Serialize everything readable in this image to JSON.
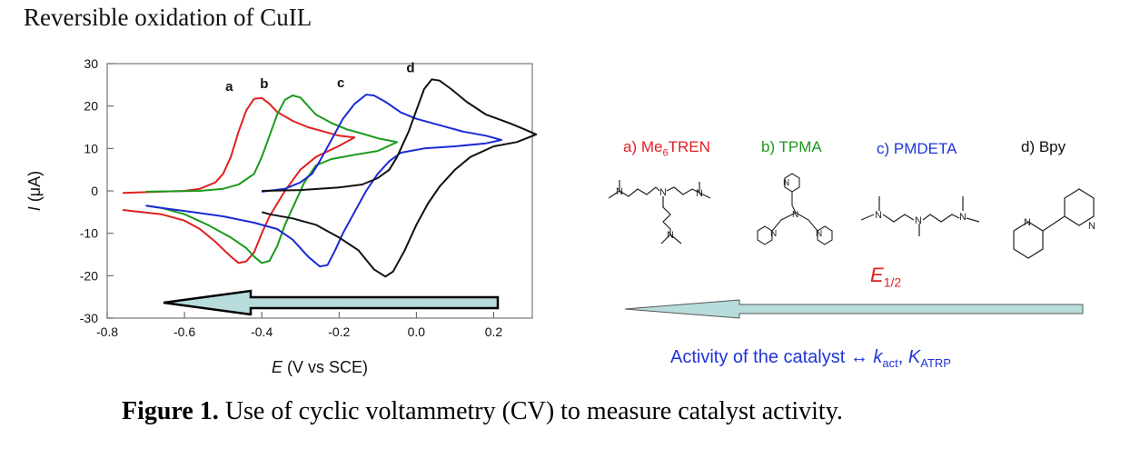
{
  "page_heading": "Reversible oxidation of CuIL",
  "caption": {
    "label": "Figure 1.",
    "text": " Use of cyclic voltammetry (CV) to measure catalyst activity."
  },
  "chart_data": {
    "type": "line",
    "xlabel_symbol": "E",
    "xlabel_rest": " (V vs SCE)",
    "ylabel_symbol": "I",
    "ylabel_rest": " (μA)",
    "xlim": [
      -0.8,
      0.3
    ],
    "ylim": [
      -30,
      30
    ],
    "xticks": [
      -0.8,
      -0.6,
      -0.4,
      -0.2,
      0.0,
      0.2
    ],
    "xtick_labels": [
      "-0.8",
      "-0.6",
      "-0.4",
      "-0.2",
      "0.0",
      "0.2"
    ],
    "yticks": [
      30,
      20,
      10,
      0,
      -10,
      -20,
      -30
    ],
    "ytick_labels": [
      "30",
      "20",
      "10",
      "0",
      "-10",
      "-20",
      "-30"
    ],
    "series": [
      {
        "name": "a",
        "color": "#e02020",
        "points": [
          [
            -0.76,
            -0.5
          ],
          [
            -0.6,
            0
          ],
          [
            -0.56,
            0.5
          ],
          [
            -0.52,
            2
          ],
          [
            -0.5,
            4
          ],
          [
            -0.48,
            8
          ],
          [
            -0.46,
            14
          ],
          [
            -0.44,
            19
          ],
          [
            -0.42,
            21.7
          ],
          [
            -0.4,
            21.9
          ],
          [
            -0.38,
            20.5
          ],
          [
            -0.36,
            18.6
          ],
          [
            -0.32,
            16.5
          ],
          [
            -0.28,
            15
          ],
          [
            -0.24,
            14
          ],
          [
            -0.2,
            13
          ],
          [
            -0.16,
            12.6
          ],
          [
            -0.2,
            10.6
          ],
          [
            -0.26,
            8
          ],
          [
            -0.3,
            5
          ],
          [
            -0.34,
            0
          ],
          [
            -0.36,
            -3
          ],
          [
            -0.38,
            -6
          ],
          [
            -0.4,
            -10
          ],
          [
            -0.42,
            -14.5
          ],
          [
            -0.44,
            -16.6
          ],
          [
            -0.46,
            -17
          ],
          [
            -0.48,
            -15.5
          ],
          [
            -0.52,
            -12
          ],
          [
            -0.56,
            -9
          ],
          [
            -0.6,
            -7
          ],
          [
            -0.66,
            -5.5
          ],
          [
            -0.76,
            -4.5
          ]
        ]
      },
      {
        "name": "b",
        "color": "#1a9a1a",
        "points": [
          [
            -0.7,
            -0.2
          ],
          [
            -0.56,
            0
          ],
          [
            -0.5,
            0.5
          ],
          [
            -0.46,
            1.5
          ],
          [
            -0.42,
            4
          ],
          [
            -0.4,
            8
          ],
          [
            -0.38,
            13
          ],
          [
            -0.36,
            18
          ],
          [
            -0.34,
            21.5
          ],
          [
            -0.32,
            22.5
          ],
          [
            -0.3,
            22
          ],
          [
            -0.28,
            20
          ],
          [
            -0.26,
            18
          ],
          [
            -0.22,
            16
          ],
          [
            -0.18,
            14.5
          ],
          [
            -0.14,
            13.5
          ],
          [
            -0.1,
            12.4
          ],
          [
            -0.05,
            11.5
          ],
          [
            -0.1,
            9.4
          ],
          [
            -0.16,
            8.5
          ],
          [
            -0.22,
            7.5
          ],
          [
            -0.26,
            6
          ],
          [
            -0.29,
            2
          ],
          [
            -0.31,
            -2
          ],
          [
            -0.34,
            -8
          ],
          [
            -0.36,
            -13
          ],
          [
            -0.38,
            -16.5
          ],
          [
            -0.4,
            -17
          ],
          [
            -0.42,
            -15.5
          ],
          [
            -0.44,
            -13.5
          ],
          [
            -0.48,
            -11
          ],
          [
            -0.54,
            -8
          ],
          [
            -0.6,
            -5.5
          ],
          [
            -0.66,
            -4
          ],
          [
            -0.7,
            -3.5
          ]
        ]
      },
      {
        "name": "c",
        "color": "#1a2ad6",
        "points": [
          [
            -0.4,
            -0.2
          ],
          [
            -0.34,
            0.5
          ],
          [
            -0.3,
            2
          ],
          [
            -0.27,
            4
          ],
          [
            -0.25,
            7
          ],
          [
            -0.22,
            12
          ],
          [
            -0.19,
            17
          ],
          [
            -0.16,
            20.5
          ],
          [
            -0.13,
            22.7
          ],
          [
            -0.11,
            22.5
          ],
          [
            -0.08,
            21
          ],
          [
            -0.04,
            18.5
          ],
          [
            0,
            17
          ],
          [
            0.06,
            15.5
          ],
          [
            0.12,
            14
          ],
          [
            0.18,
            13
          ],
          [
            0.22,
            12
          ],
          [
            0.18,
            11.2
          ],
          [
            0.1,
            10.5
          ],
          [
            0.02,
            10
          ],
          [
            -0.04,
            9
          ],
          [
            -0.07,
            7
          ],
          [
            -0.1,
            4
          ],
          [
            -0.13,
            0
          ],
          [
            -0.16,
            -5
          ],
          [
            -0.19,
            -10
          ],
          [
            -0.21,
            -14
          ],
          [
            -0.23,
            -17.5
          ],
          [
            -0.25,
            -17.8
          ],
          [
            -0.28,
            -15.5
          ],
          [
            -0.32,
            -11.5
          ],
          [
            -0.36,
            -9
          ],
          [
            -0.42,
            -7.5
          ],
          [
            -0.5,
            -6
          ],
          [
            -0.58,
            -5
          ],
          [
            -0.66,
            -4
          ],
          [
            -0.7,
            -3.5
          ]
        ]
      },
      {
        "name": "d",
        "color": "#111111",
        "points": [
          [
            -0.4,
            0
          ],
          [
            -0.3,
            0.2
          ],
          [
            -0.2,
            0.8
          ],
          [
            -0.14,
            1.5
          ],
          [
            -0.1,
            3
          ],
          [
            -0.07,
            5
          ],
          [
            -0.05,
            8
          ],
          [
            -0.02,
            14
          ],
          [
            0,
            19
          ],
          [
            0.02,
            24
          ],
          [
            0.04,
            26.3
          ],
          [
            0.06,
            26
          ],
          [
            0.09,
            24
          ],
          [
            0.13,
            21
          ],
          [
            0.18,
            18
          ],
          [
            0.24,
            16
          ],
          [
            0.28,
            14.5
          ],
          [
            0.31,
            13.3
          ],
          [
            0.26,
            11.5
          ],
          [
            0.2,
            10.5
          ],
          [
            0.14,
            8
          ],
          [
            0.1,
            5
          ],
          [
            0.06,
            1
          ],
          [
            0.03,
            -3
          ],
          [
            0,
            -8
          ],
          [
            -0.03,
            -14
          ],
          [
            -0.06,
            -19
          ],
          [
            -0.08,
            -20.2
          ],
          [
            -0.11,
            -18.5
          ],
          [
            -0.15,
            -14
          ],
          [
            -0.2,
            -11
          ],
          [
            -0.26,
            -8
          ],
          [
            -0.32,
            -6.5
          ],
          [
            -0.38,
            -5.5
          ],
          [
            -0.4,
            -5
          ]
        ]
      }
    ],
    "series_labels": [
      "a",
      "b",
      "c",
      "d"
    ]
  },
  "ligands": [
    {
      "prefix": "a) Me",
      "sub": "6",
      "suffix": "TREN",
      "color": "#e02020"
    },
    {
      "prefix": "b) TPMA",
      "sub": "",
      "suffix": "",
      "color": "#1a9a1a"
    },
    {
      "prefix": "c) PMDETA",
      "sub": "",
      "suffix": "",
      "color": "#1f35d6"
    },
    {
      "prefix": "d) Bpy",
      "sub": "",
      "suffix": "",
      "color": "#111111"
    }
  ],
  "e_half": {
    "symbol": "E",
    "sub": "1/2"
  },
  "activity": {
    "text": "Activity of the catalyst ↔ ",
    "k": "k",
    "k_sub": "act",
    "sep": ", ",
    "K": "K",
    "K_sub": "ATRP"
  },
  "structure_atoms": {
    "N": "N"
  }
}
